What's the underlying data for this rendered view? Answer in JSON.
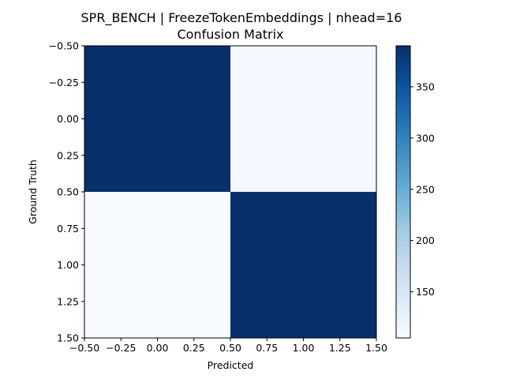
{
  "chart_data": {
    "type": "heatmap",
    "title_line1": "SPR_BENCH | FreezeTokenEmbeddings | nhead=16",
    "title_line2": "Confusion Matrix",
    "xlabel": "Predicted",
    "ylabel": "Ground Truth",
    "matrix": [
      [
        390,
        110
      ],
      [
        105,
        390
      ]
    ],
    "xlim": [
      -0.5,
      1.5
    ],
    "ylim": [
      1.5,
      -0.5
    ],
    "x_ticks": [
      -0.5,
      -0.25,
      0.0,
      0.25,
      0.5,
      0.75,
      1.0,
      1.25,
      1.5
    ],
    "x_tick_labels": [
      "−0.50",
      "−0.25",
      "0.00",
      "0.25",
      "0.50",
      "0.75",
      "1.00",
      "1.25",
      "1.50"
    ],
    "y_ticks": [
      -0.5,
      -0.25,
      0.0,
      0.25,
      0.5,
      0.75,
      1.0,
      1.25,
      1.5
    ],
    "y_tick_labels": [
      "−0.50",
      "−0.25",
      "0.00",
      "0.25",
      "0.50",
      "0.75",
      "1.00",
      "1.25",
      "1.50"
    ],
    "colorbar": {
      "min": 105,
      "max": 390,
      "ticks": [
        150,
        200,
        250,
        300,
        350
      ],
      "tick_labels": [
        "150",
        "200",
        "250",
        "300",
        "350"
      ],
      "colormap": "Blues",
      "color_low": "#f7fbff",
      "color_high": "#08306b"
    },
    "grid": false
  }
}
